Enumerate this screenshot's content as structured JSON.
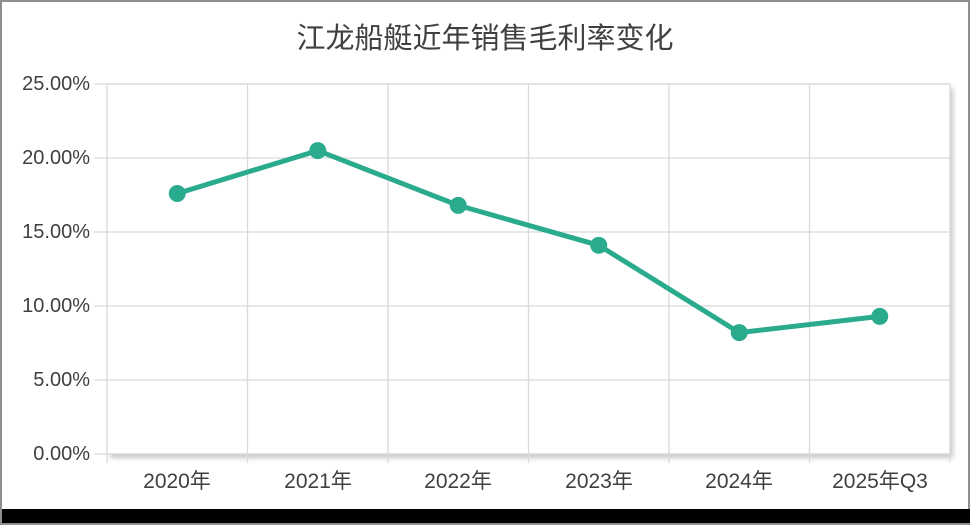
{
  "page": {
    "background_color": "#ffffff",
    "frame_border_color": "#8e8e8e",
    "bottom_bar_color": "#000000"
  },
  "chart": {
    "title_color": "#404040",
    "axis_label_color": "#404040",
    "gridline_color": "#d9d9d9",
    "line_color": "#2bab8e",
    "plot_background": "#ffffff"
  },
  "chart_data": {
    "type": "line",
    "title": "江龙船艇近年销售毛利率变化",
    "categories": [
      "2020年",
      "2021年",
      "2022年",
      "2023年",
      "2024年",
      "2025年Q3"
    ],
    "values": [
      17.6,
      20.5,
      16.8,
      14.1,
      8.2,
      9.3
    ],
    "unit": "%",
    "xlabel": "",
    "ylabel": "",
    "ylim": [
      0,
      25
    ],
    "y_tick_interval": 5,
    "y_tick_labels": [
      "25.00%",
      "20.00%",
      "15.00%",
      "10.00%",
      "5.00%",
      "0.00%"
    ],
    "grid": true,
    "legend": "none",
    "marker": "circle"
  }
}
